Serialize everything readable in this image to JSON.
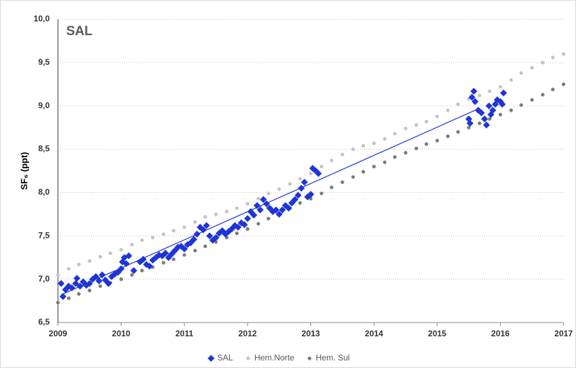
{
  "chart_data": {
    "type": "scatter",
    "title": "SAL",
    "ylabel": "SF₆ (ppt)",
    "xlim": [
      2009,
      2017
    ],
    "xticks": [
      2009,
      2010,
      2011,
      2012,
      2013,
      2014,
      2015,
      2016,
      2017
    ],
    "ylim": [
      6.5,
      10
    ],
    "yticks": [
      {
        "value": 6.5,
        "label": "6,5"
      },
      {
        "value": 7,
        "label": "7,0"
      },
      {
        "value": 7.5,
        "label": "7,5"
      },
      {
        "value": 8,
        "label": "8,0"
      },
      {
        "value": 8.5,
        "label": "8,5"
      },
      {
        "value": 9,
        "label": "9,0"
      },
      {
        "value": 9.5,
        "label": "9,5"
      },
      {
        "value": 10,
        "label": "10,0"
      }
    ],
    "grid": true,
    "legend": "bottom",
    "trendline": {
      "color": "#2a3fe0",
      "x": [
        2009.05,
        2015.6
      ],
      "values": [
        6.82,
        8.95
      ]
    },
    "series": [
      {
        "name": "SAL",
        "color": "#1f35d6",
        "marker": "diamond",
        "x": [
          2009.05,
          2009.08,
          2009.12,
          2009.17,
          2009.22,
          2009.28,
          2009.3,
          2009.35,
          2009.4,
          2009.45,
          2009.5,
          2009.55,
          2009.6,
          2009.65,
          2009.7,
          2009.75,
          2009.8,
          2009.85,
          2009.9,
          2009.95,
          2010,
          2010.02,
          2010.05,
          2010.08,
          2010.12,
          2010.2,
          2010.3,
          2010.35,
          2010.4,
          2010.45,
          2010.5,
          2010.55,
          2010.6,
          2010.65,
          2010.7,
          2010.75,
          2010.8,
          2010.85,
          2010.9,
          2010.95,
          2011,
          2011.05,
          2011.1,
          2011.15,
          2011.2,
          2011.25,
          2011.3,
          2011.35,
          2011.4,
          2011.45,
          2011.5,
          2011.55,
          2011.6,
          2011.65,
          2011.7,
          2011.75,
          2011.8,
          2011.85,
          2011.9,
          2011.95,
          2012,
          2012.05,
          2012.1,
          2012.15,
          2012.2,
          2012.25,
          2012.3,
          2012.35,
          2012.4,
          2012.45,
          2012.5,
          2012.55,
          2012.6,
          2012.65,
          2012.7,
          2012.75,
          2012.8,
          2012.85,
          2012.9,
          2012.95,
          2013,
          2013.03,
          2013.08,
          2013.12,
          2015.5,
          2015.52,
          2015.55,
          2015.58,
          2015.6,
          2015.65,
          2015.7,
          2015.75,
          2015.78,
          2015.82,
          2015.85,
          2015.88,
          2015.92,
          2015.95,
          2016,
          2016.03,
          2016.05
        ],
        "values": [
          6.95,
          6.8,
          6.88,
          6.92,
          6.9,
          6.95,
          7.01,
          6.92,
          6.97,
          6.93,
          6.95,
          7,
          7.03,
          6.98,
          7.05,
          6.99,
          6.95,
          7.03,
          7.06,
          7.08,
          7.12,
          7.2,
          7.25,
          7.18,
          7.27,
          7.1,
          7.2,
          7.23,
          7.17,
          7.15,
          7.22,
          7.25,
          7.28,
          7.27,
          7.3,
          7.25,
          7.29,
          7.33,
          7.37,
          7.38,
          7.35,
          7.4,
          7.42,
          7.46,
          7.52,
          7.6,
          7.57,
          7.62,
          7.5,
          7.45,
          7.48,
          7.53,
          7.56,
          7.52,
          7.55,
          7.58,
          7.62,
          7.6,
          7.65,
          7.63,
          7.7,
          7.78,
          7.74,
          7.85,
          7.8,
          7.92,
          7.87,
          7.82,
          7.78,
          7.8,
          7.75,
          7.8,
          7.85,
          7.82,
          7.88,
          7.92,
          7.97,
          8.05,
          8.12,
          7.95,
          7.98,
          8.28,
          8.25,
          8.22,
          8.85,
          8.8,
          9.1,
          9.17,
          9.05,
          8.95,
          8.92,
          8.85,
          8.78,
          9,
          8.9,
          8.95,
          9.02,
          9.07,
          9.05,
          9.02,
          9.15
        ]
      },
      {
        "name": "Hem.Norte",
        "color": "#c4c4c4",
        "marker": "circle",
        "x": [
          2009,
          2009.17,
          2009.33,
          2009.5,
          2009.67,
          2009.83,
          2010,
          2010.17,
          2010.33,
          2010.5,
          2010.67,
          2010.83,
          2011,
          2011.17,
          2011.33,
          2011.5,
          2011.67,
          2011.83,
          2012,
          2012.17,
          2012.33,
          2012.5,
          2012.67,
          2012.83,
          2013,
          2013.17,
          2013.33,
          2013.5,
          2013.67,
          2013.83,
          2014,
          2014.17,
          2014.33,
          2014.5,
          2014.67,
          2014.83,
          2015,
          2015.17,
          2015.33,
          2015.5,
          2015.67,
          2015.83,
          2016,
          2016.17,
          2016.33,
          2016.5,
          2016.67,
          2016.83,
          2017
        ],
        "values": [
          7.05,
          7.12,
          7.17,
          7.21,
          7.26,
          7.3,
          7.34,
          7.4,
          7.45,
          7.48,
          7.52,
          7.56,
          7.6,
          7.66,
          7.72,
          7.75,
          7.78,
          7.82,
          7.87,
          7.93,
          7.99,
          8.04,
          8.1,
          8.16,
          8.22,
          8.3,
          8.37,
          8.44,
          8.5,
          8.54,
          8.57,
          8.62,
          8.68,
          8.74,
          8.78,
          8.82,
          8.88,
          8.95,
          9.02,
          9.08,
          9.12,
          9.17,
          9.22,
          9.3,
          9.38,
          9.44,
          9.5,
          9.56,
          9.6
        ]
      },
      {
        "name": "Hem. Sul",
        "color": "#7b7b7b",
        "marker": "circle",
        "x": [
          2009,
          2009.17,
          2009.33,
          2009.5,
          2009.67,
          2009.83,
          2010,
          2010.17,
          2010.33,
          2010.5,
          2010.67,
          2010.83,
          2011,
          2011.17,
          2011.33,
          2011.5,
          2011.67,
          2011.83,
          2012,
          2012.17,
          2012.33,
          2012.5,
          2012.67,
          2012.83,
          2013,
          2013.17,
          2013.33,
          2013.5,
          2013.67,
          2013.83,
          2014,
          2014.17,
          2014.33,
          2014.5,
          2014.67,
          2014.83,
          2015,
          2015.17,
          2015.33,
          2015.5,
          2015.67,
          2015.83,
          2016,
          2016.17,
          2016.33,
          2016.5,
          2016.67,
          2016.83,
          2017
        ],
        "values": [
          6.73,
          6.78,
          6.83,
          6.87,
          6.92,
          6.96,
          7,
          7.05,
          7.1,
          7.14,
          7.19,
          7.23,
          7.28,
          7.33,
          7.38,
          7.43,
          7.48,
          7.53,
          7.58,
          7.64,
          7.7,
          7.76,
          7.82,
          7.88,
          7.93,
          7.99,
          8.06,
          8.12,
          8.18,
          8.24,
          8.3,
          8.35,
          8.41,
          8.46,
          8.51,
          8.56,
          8.6,
          8.65,
          8.7,
          8.75,
          8.8,
          8.85,
          8.9,
          8.95,
          9.01,
          9.07,
          9.13,
          9.19,
          9.25
        ]
      }
    ]
  }
}
